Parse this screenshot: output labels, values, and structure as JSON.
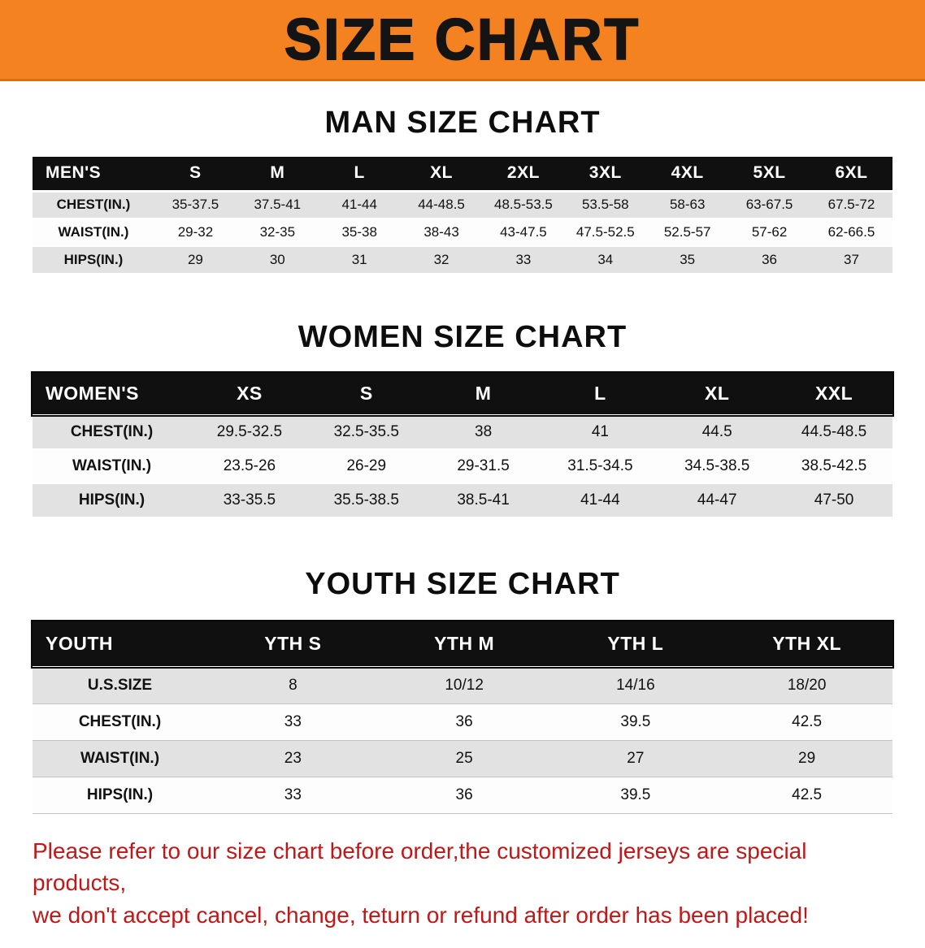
{
  "banner": {
    "title": "SIZE CHART"
  },
  "colors": {
    "banner_bg": "#F58220",
    "header_bg": "#101010",
    "row_stripe": "#E2E2E2",
    "disclaimer_red": "#BE1818"
  },
  "sections": [
    {
      "heading": "MAN SIZE CHART",
      "table": {
        "header": [
          "MEN'S",
          "S",
          "M",
          "L",
          "XL",
          "2XL",
          "3XL",
          "4XL",
          "5XL",
          "6XL"
        ],
        "rows": [
          [
            "CHEST(IN.)",
            "35-37.5",
            "37.5-41",
            "41-44",
            "44-48.5",
            "48.5-53.5",
            "53.5-58",
            "58-63",
            "63-67.5",
            "67.5-72"
          ],
          [
            "WAIST(IN.)",
            "29-32",
            "32-35",
            "35-38",
            "38-43",
            "43-47.5",
            "47.5-52.5",
            "52.5-57",
            "57-62",
            "62-66.5"
          ],
          [
            "HIPS(IN.)",
            "29",
            "30",
            "31",
            "32",
            "33",
            "34",
            "35",
            "36",
            "37"
          ]
        ]
      }
    },
    {
      "heading": "WOMEN SIZE CHART",
      "table": {
        "header": [
          "WOMEN'S",
          "XS",
          "S",
          "M",
          "L",
          "XL",
          "XXL"
        ],
        "rows": [
          [
            "CHEST(IN.)",
            "29.5-32.5",
            "32.5-35.5",
            "38",
            "41",
            "44.5",
            "44.5-48.5"
          ],
          [
            "WAIST(IN.)",
            "23.5-26",
            "26-29",
            "29-31.5",
            "31.5-34.5",
            "34.5-38.5",
            "38.5-42.5"
          ],
          [
            "HIPS(IN.)",
            "33-35.5",
            "35.5-38.5",
            "38.5-41",
            "41-44",
            "44-47",
            "47-50"
          ]
        ]
      }
    },
    {
      "heading": "YOUTH SIZE CHART",
      "table": {
        "header": [
          "YOUTH",
          "YTH S",
          "YTH M",
          "YTH L",
          "YTH XL"
        ],
        "rows": [
          [
            "U.S.SIZE",
            "8",
            "10/12",
            "14/16",
            "18/20"
          ],
          [
            "CHEST(IN.)",
            "33",
            "36",
            "39.5",
            "42.5"
          ],
          [
            "WAIST(IN.)",
            "23",
            "25",
            "27",
            "29"
          ],
          [
            "HIPS(IN.)",
            "33",
            "36",
            "39.5",
            "42.5"
          ]
        ]
      }
    }
  ],
  "disclaimer": {
    "line1": "Please refer to our size chart before order,the customized jerseys are special products,",
    "line2": "we don't accept cancel, change, teturn or refund after order has been placed!"
  }
}
